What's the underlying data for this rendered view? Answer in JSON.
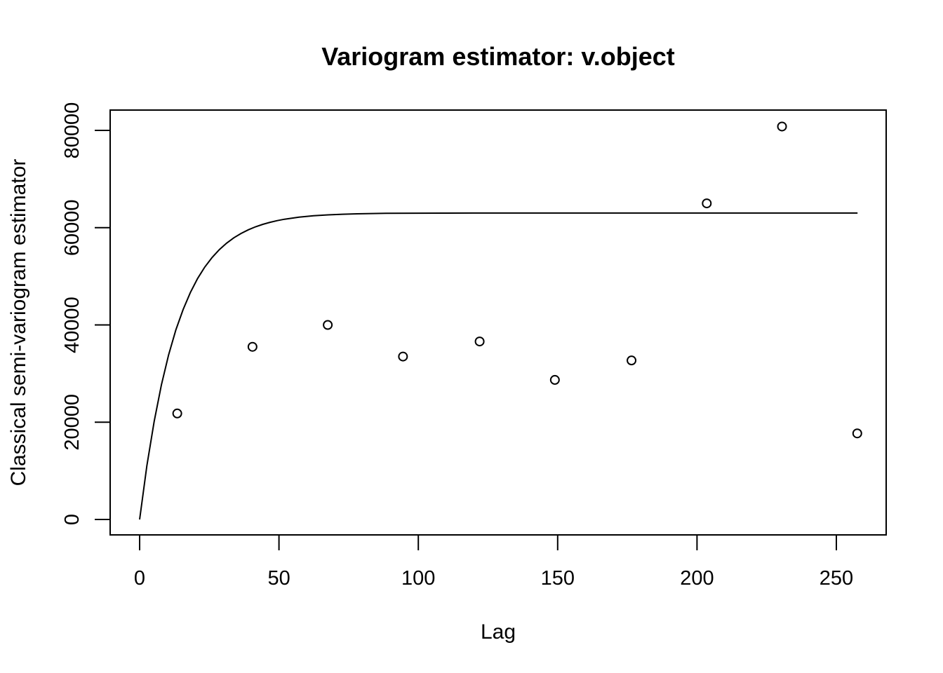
{
  "chart_data": {
    "type": "scatter",
    "title": "Variogram estimator: v.object",
    "xlabel": "Lag",
    "ylabel": "Classical semi-variogram estimator",
    "xlim": [
      -10,
      268
    ],
    "ylim": [
      -3300,
      84000
    ],
    "x_ticks": [
      0,
      50,
      100,
      150,
      200,
      250
    ],
    "y_ticks": [
      0,
      20000,
      40000,
      60000,
      80000
    ],
    "x_tick_labels": [
      "0",
      "50",
      "100",
      "150",
      "200",
      "250"
    ],
    "y_tick_labels": [
      "0",
      "20000",
      "40000",
      "60000",
      "80000"
    ],
    "grid": false,
    "series": [
      {
        "kind": "points",
        "x": [
          13.5,
          40.5,
          67.5,
          94.5,
          122,
          149,
          176.5,
          203.5,
          230.5,
          257.5
        ],
        "y": [
          21800,
          35500,
          40000,
          33500,
          36600,
          28700,
          32700,
          65000,
          80800,
          17700
        ]
      },
      {
        "kind": "line",
        "x": [
          0,
          2.6,
          5.2,
          7.8,
          10.4,
          13,
          15.6,
          18.2,
          20.8,
          23.4,
          26,
          28.6,
          31.2,
          33.8,
          36.4,
          39,
          41.6,
          44.2,
          46.8,
          49.4,
          52,
          57.2,
          62.4,
          67.6,
          72.8,
          78,
          88.4,
          98.8,
          109.2,
          119.6,
          130,
          150.8,
          171.6,
          192.4,
          213.2,
          234,
          257.6
        ],
        "y": [
          0,
          11834,
          21600,
          29660,
          36310,
          41800,
          46330,
          50070,
          53160,
          55700,
          57800,
          59530,
          60960,
          62140,
          63110,
          63910,
          64570,
          65120,
          65570,
          65940,
          66250,
          66700,
          67000,
          67210,
          67350,
          67440,
          67540,
          67580,
          67590,
          67600,
          67600,
          67600,
          67600,
          67600,
          67600,
          67600,
          67600
        ],
        "y_scaled_note": ""
      }
    ]
  }
}
